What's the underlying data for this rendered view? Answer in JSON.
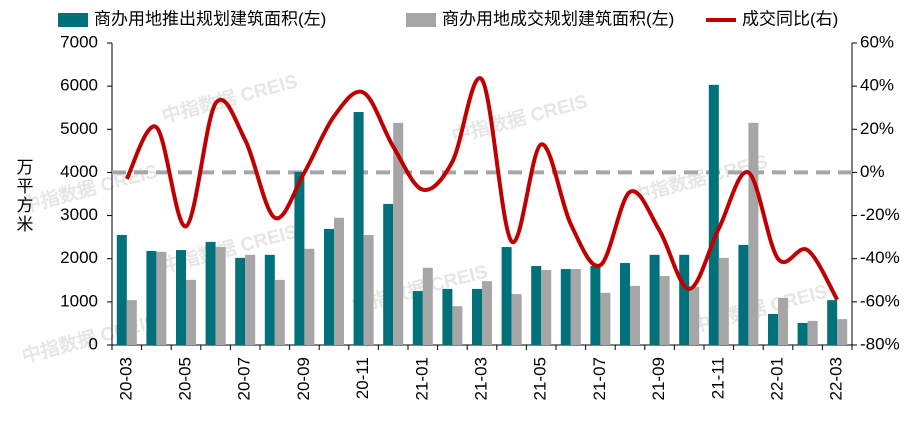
{
  "chart_data": {
    "type": "bar_line",
    "legend_position": "top",
    "ylabel": "万平方米",
    "watermark": "中指数据 CREIS",
    "categories": [
      "20-03",
      null,
      "20-05",
      null,
      "20-07",
      null,
      "20-09",
      null,
      "20-11",
      null,
      "21-01",
      null,
      "21-03",
      null,
      "21-05",
      null,
      "21-07",
      null,
      "21-09",
      null,
      "21-11",
      null,
      "22-01",
      null,
      "22-03"
    ],
    "series": [
      {
        "name": "商办用地推出规划建筑面积(左)",
        "type": "bar",
        "color": "#007079",
        "values": [
          2550,
          2180,
          2200,
          2390,
          2020,
          2090,
          4010,
          2690,
          5400,
          3270,
          1250,
          1300,
          1300,
          2270,
          1830,
          1760,
          1830,
          1900,
          2090,
          2090,
          6030,
          2320,
          720,
          510,
          1040
        ]
      },
      {
        "name": "商办用地成交规划建筑面积(左)",
        "type": "bar",
        "color": "#a6a6a6",
        "values": [
          1040,
          2160,
          1510,
          2270,
          2090,
          1510,
          2230,
          2950,
          2550,
          5150,
          1790,
          900,
          1480,
          1180,
          1740,
          1760,
          1210,
          1370,
          1600,
          1350,
          2020,
          5150,
          1090,
          560,
          600
        ]
      },
      {
        "name": "成交同比(右)",
        "type": "line",
        "axis": "y2",
        "color": "#c00000",
        "values": [
          -3,
          21,
          -25,
          32,
          15,
          -21,
          0,
          26,
          37,
          12,
          -8,
          5,
          43,
          -32,
          13,
          -24,
          -43,
          -9,
          -27,
          -54,
          -26,
          0,
          -40,
          -36,
          -59
        ]
      }
    ],
    "ylim": [
      0,
      7000
    ],
    "yticks": [
      0,
      1000,
      2000,
      3000,
      4000,
      5000,
      6000,
      7000
    ],
    "y2lim": [
      -80,
      60
    ],
    "y2ticks": [
      {
        "value": -80,
        "label": "-80%"
      },
      {
        "value": -60,
        "label": "-60%"
      },
      {
        "value": -40,
        "label": "-40%"
      },
      {
        "value": -20,
        "label": "-20%"
      },
      {
        "value": 0,
        "label": "0%"
      },
      {
        "value": 20,
        "label": "20%"
      },
      {
        "value": 40,
        "label": "40%"
      },
      {
        "value": 60,
        "label": "60%"
      }
    ],
    "reference_line": {
      "axis": "y2",
      "value": 0,
      "color": "#a6a6a6"
    }
  }
}
